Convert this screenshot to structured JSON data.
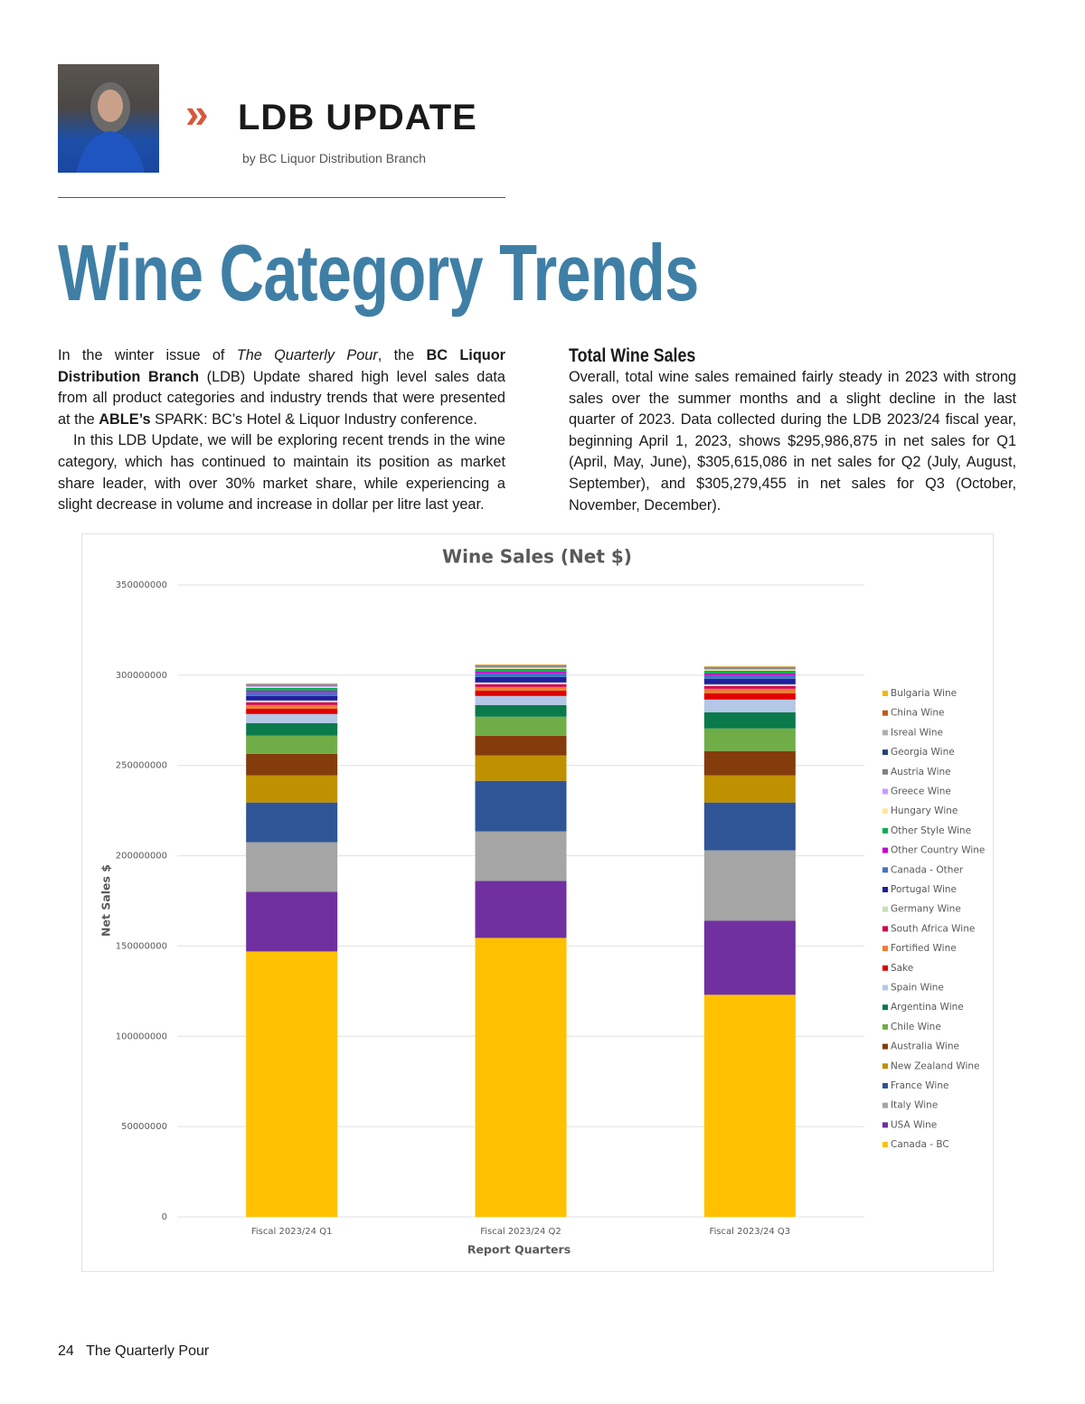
{
  "header": {
    "section": "LDB UPDATE",
    "byline": "by BC Liquor Distribution Branch"
  },
  "article": {
    "title": "Wine Category Trends",
    "left_column": {
      "paragraphs": [
        [
          "In the winter issue of ",
          "The Quarterly Pour",
          ", the ",
          "BC Liquor Distribution Branch",
          " (LDB) Update shared high level sales data from all product categories and industry trends that were presented at the ",
          "ABLE’s",
          " SPARK: BC’s Hotel & Liquor Industry conference."
        ],
        [
          "In this LDB Update, we will be exploring recent trends in the wine category, which has continued to maintain its position as market share leader, with over 30% market share, while experiencing a slight decrease in volume and increase in dollar per litre last year."
        ]
      ]
    },
    "right_column": {
      "heading": "Total Wine Sales",
      "paragraph": "Overall, total wine sales remained fairly steady in 2023 with strong sales over the summer months and a slight decline in the last quarter of 2023. Data collected during the LDB 2023/24 fiscal year, beginning April 1, 2023, shows $295,986,875 in net sales for Q1 (April, May, June), $305,615,086 in net sales for Q2 (July, August, September), and $305,279,455 in net sales for Q3 (October, November, December)."
    }
  },
  "chart_data": {
    "type": "stacked_bar",
    "title": "Wine Sales (Net $)",
    "x_label": "Report Quarters",
    "y_label": "Net Sales $",
    "categories": [
      "Fiscal 2023/24 Q1",
      "Fiscal 2023/24 Q2",
      "Fiscal 2023/24 Q3"
    ],
    "ylim": [
      0,
      350000000
    ],
    "yticks": [
      0,
      50000000,
      100000000,
      150000000,
      200000000,
      250000000,
      300000000,
      350000000
    ],
    "grid": true,
    "legend": "right",
    "series": [
      {
        "name": "Canada - BC",
        "color": "#ffc000",
        "values": [
          147000000,
          154500000,
          123000000
        ]
      },
      {
        "name": "USA Wine",
        "color": "#7030a0",
        "values": [
          33000000,
          31500000,
          41000000
        ]
      },
      {
        "name": "Italy Wine",
        "color": "#a5a5a5",
        "values": [
          27500000,
          27500000,
          39000000
        ]
      },
      {
        "name": "France Wine",
        "color": "#2f5597",
        "values": [
          22000000,
          28000000,
          26500000
        ]
      },
      {
        "name": "New Zealand Wine",
        "color": "#bf9000",
        "values": [
          15000000,
          14000000,
          15000000
        ]
      },
      {
        "name": "Australia Wine",
        "color": "#843c0c",
        "values": [
          12000000,
          11000000,
          13500000
        ]
      },
      {
        "name": "Chile Wine",
        "color": "#70ad47",
        "values": [
          10000000,
          10500000,
          12500000
        ]
      },
      {
        "name": "Argentina Wine",
        "color": "#0b7a4b",
        "values": [
          7000000,
          6500000,
          9000000
        ]
      },
      {
        "name": "Spain Wine",
        "color": "#b4c7e7",
        "values": [
          5000000,
          5000000,
          7000000
        ]
      },
      {
        "name": "Sake",
        "color": "#e00000",
        "values": [
          3000000,
          3000000,
          3500000
        ]
      },
      {
        "name": "Fortified Wine",
        "color": "#ed7d31",
        "values": [
          2000000,
          2000000,
          2500000
        ]
      },
      {
        "name": "South Africa Wine",
        "color": "#d6004f",
        "values": [
          1500000,
          1500000,
          1500000
        ]
      },
      {
        "name": "Germany Wine",
        "color": "#c5e0b4",
        "values": [
          1000000,
          1000000,
          1000000
        ]
      },
      {
        "name": "Portugal Wine",
        "color": "#1f1fa0",
        "values": [
          2500000,
          3000000,
          3000000
        ]
      },
      {
        "name": "Canada - Other",
        "color": "#4472c4",
        "values": [
          2000000,
          2000000,
          2000000
        ]
      },
      {
        "name": "Other Country Wine",
        "color": "#cc00cc",
        "values": [
          1000000,
          1000000,
          1000000
        ]
      },
      {
        "name": "Other Style Wine",
        "color": "#00b050",
        "values": [
          1500000,
          1500000,
          1500000
        ]
      },
      {
        "name": "Hungary Wine",
        "color": "#ffe699",
        "values": [
          500000,
          500000,
          500000
        ]
      },
      {
        "name": "Greece Wine",
        "color": "#cc99ff",
        "values": [
          500000,
          500000,
          500000
        ]
      },
      {
        "name": "Austria Wine",
        "color": "#7f7f7f",
        "values": [
          500000,
          500000,
          500000
        ]
      },
      {
        "name": "Georgia Wine",
        "color": "#264478",
        "values": [
          300000,
          300000,
          300000
        ]
      },
      {
        "name": "Isreal Wine",
        "color": "#b0b0b0",
        "values": [
          300000,
          300000,
          300000
        ]
      },
      {
        "name": "China Wine",
        "color": "#c55a11",
        "values": [
          200000,
          200000,
          200000
        ]
      },
      {
        "name": "Bulgaria Wine",
        "color": "#f5b800",
        "values": [
          200000,
          200000,
          200000
        ]
      }
    ]
  },
  "footer": {
    "page": "24",
    "publication": "The Quarterly Pour"
  }
}
